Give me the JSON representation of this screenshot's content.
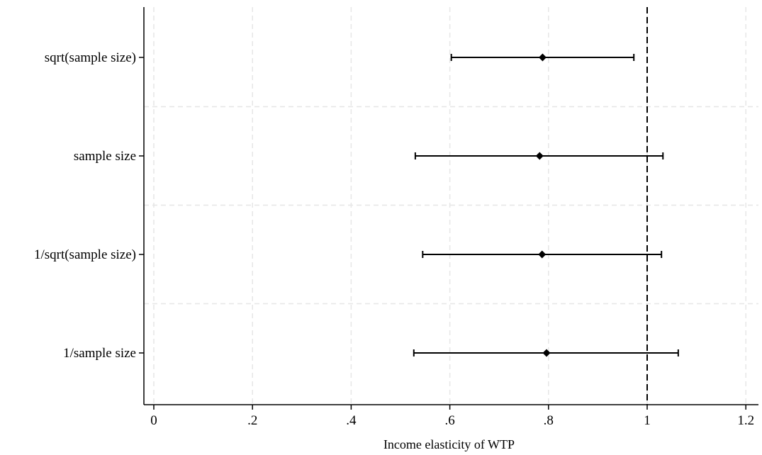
{
  "chart_data": {
    "type": "scatter",
    "subtype": "coefficient-plot-with-confidence-intervals",
    "title": "",
    "xlabel": "Income elasticity of WTP",
    "ylabel": "",
    "xlim": [
      -0.02,
      1.22
    ],
    "xticks": [
      0,
      0.2,
      0.4,
      0.6,
      0.8,
      1,
      1.2
    ],
    "xtick_labels": [
      "0",
      ".2",
      ".4",
      ".6",
      ".8",
      "1",
      "1.2"
    ],
    "reference_line": 1,
    "grid": true,
    "categories": [
      "sqrt(sample size)",
      "sample size",
      "1/sqrt(sample size)",
      "1/sample size"
    ],
    "estimates": [
      0.788,
      0.782,
      0.787,
      0.796
    ],
    "ci_low": [
      0.603,
      0.53,
      0.545,
      0.527
    ],
    "ci_high": [
      0.973,
      1.032,
      1.029,
      1.063
    ],
    "colors": {
      "marker": "#000000",
      "grid": "#e6e6e6",
      "axis": "#000000",
      "reference": "#000000"
    }
  }
}
